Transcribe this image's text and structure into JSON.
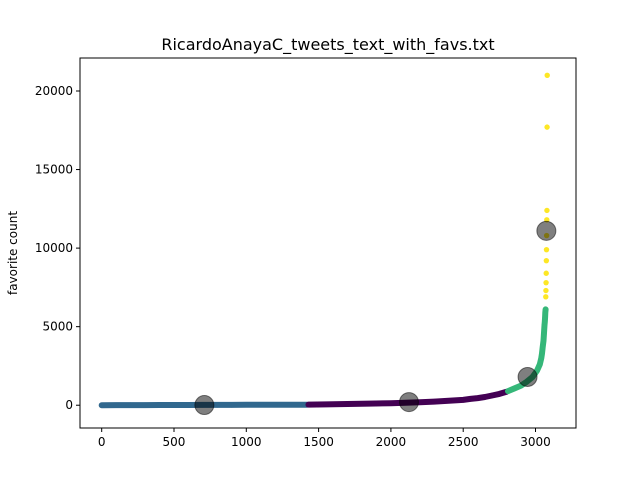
{
  "chart_data": {
    "type": "scatter",
    "title": "RicardoAnayaC_tweets_text_with_favs.txt",
    "xlabel": "",
    "ylabel": "favorite count",
    "xlim": [
      -150,
      3280
    ],
    "ylim": [
      -1450,
      22100
    ],
    "xticks": [
      0,
      500,
      1000,
      1500,
      2000,
      2500,
      3000
    ],
    "yticks": [
      0,
      5000,
      10000,
      15000,
      20000
    ],
    "grid": false,
    "colors": {
      "cluster_low": "#31688e",
      "cluster_mid": "#440154",
      "cluster_high": "#35b779",
      "cluster_top": "#fde725",
      "centroid": "#000000"
    },
    "series": [
      {
        "x": [
          0,
          100,
          200,
          300,
          400,
          500,
          600,
          700,
          800,
          900,
          1000,
          1100,
          1200,
          1300,
          1420
        ],
        "y": [
          2,
          5,
          8,
          10,
          12,
          14,
          16,
          18,
          20,
          22,
          25,
          28,
          30,
          33,
          36
        ]
      },
      {
        "x": [
          1430,
          1550,
          1700,
          1850,
          2000,
          2100,
          2200,
          2300,
          2400,
          2500,
          2550,
          2600,
          2650,
          2700,
          2750,
          2800
        ],
        "y": [
          40,
          55,
          75,
          100,
          130,
          160,
          190,
          230,
          280,
          340,
          400,
          450,
          520,
          620,
          720,
          860
        ]
      },
      {
        "x": [
          2810,
          2850,
          2900,
          2940,
          2980,
          3010,
          3030,
          3040,
          3045,
          3050,
          3055,
          3058,
          3060,
          3062,
          3064,
          3066,
          3068,
          3070
        ],
        "y": [
          900,
          1050,
          1250,
          1500,
          1800,
          2200,
          2600,
          3000,
          3300,
          3700,
          4100,
          4500,
          4800,
          5100,
          5300,
          5600,
          5900,
          6100
        ]
      },
      {
        "x": [
          3071,
          3072,
          3073,
          3074,
          3075,
          3076,
          3077,
          3078,
          3079,
          3080,
          3081
        ],
        "y": [
          6900,
          7300,
          7800,
          8400,
          9200,
          9900,
          10800,
          11800,
          12400,
          17700,
          21000
        ]
      }
    ],
    "centroids": {
      "x": [
        710,
        2125,
        2945,
        3075
      ],
      "y": [
        10,
        200,
        1800,
        11100
      ]
    }
  }
}
